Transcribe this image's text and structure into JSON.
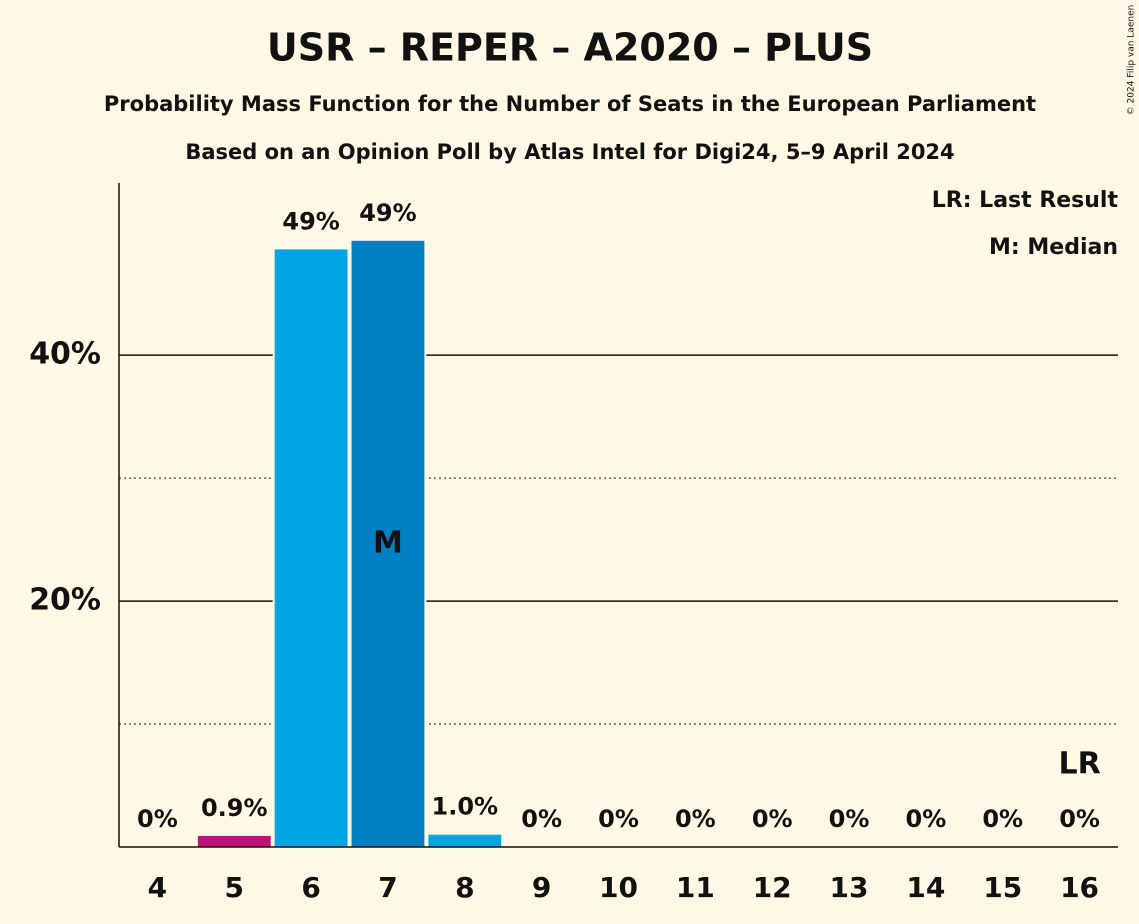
{
  "chart_data": {
    "type": "bar",
    "title": "USR – REPER – A2020 – PLUS",
    "subtitle": "Probability Mass Function for the Number of Seats in the European Parliament",
    "source": "Based on an Opinion Poll by Atlas Intel for Digi24, 5–9 April 2024",
    "copyright": "© 2024 Filip van Laenen",
    "categories": [
      4,
      5,
      6,
      7,
      8,
      9,
      10,
      11,
      12,
      13,
      14,
      15,
      16
    ],
    "values": [
      0,
      0.9,
      48.6,
      49.3,
      1.0,
      0,
      0,
      0,
      0,
      0,
      0,
      0,
      0
    ],
    "value_labels": [
      "0%",
      "0.9%",
      "49%",
      "49%",
      "1.0%",
      "0%",
      "0%",
      "0%",
      "0%",
      "0%",
      "0%",
      "0%",
      "0%"
    ],
    "colors": [
      "#00a6e3",
      "#c0107a",
      "#00a6e3",
      "#0080c4",
      "#00a6e3",
      "#00a6e3",
      "#00a6e3",
      "#00a6e3",
      "#00a6e3",
      "#00a6e3",
      "#00a6e3",
      "#00a6e3",
      "#00a6e3"
    ],
    "ylim": [
      0,
      54
    ],
    "yticks": [
      {
        "value": 20,
        "label": "20%"
      },
      {
        "value": 40,
        "label": "40%"
      }
    ],
    "minor_yticks": [
      10,
      30
    ],
    "grid": true,
    "annotations": [
      {
        "text": "M",
        "category": 7,
        "color": "#ffffff"
      },
      {
        "text": "LR",
        "category": 16,
        "color": "#111111"
      }
    ],
    "legend": [
      "LR: Last Result",
      "M: Median"
    ],
    "legend_position": "top-right"
  }
}
